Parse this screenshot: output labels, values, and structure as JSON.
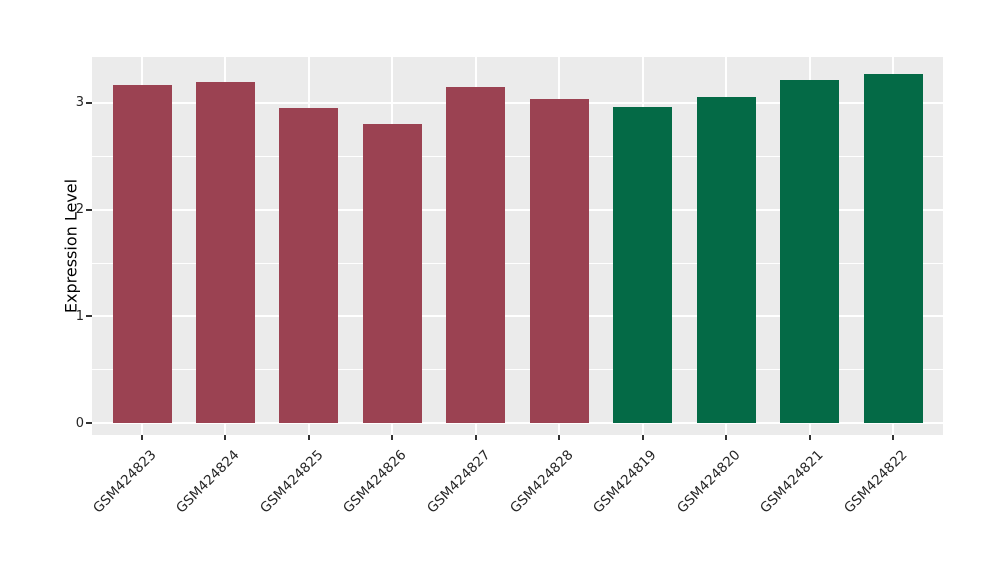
{
  "chart_data": {
    "type": "bar",
    "title": "",
    "xlabel": "",
    "ylabel": "Expression Level",
    "categories": [
      "GSM424823",
      "GSM424824",
      "GSM424825",
      "GSM424826",
      "GSM424827",
      "GSM424828",
      "GSM424819",
      "GSM424820",
      "GSM424821",
      "GSM424822"
    ],
    "values": [
      3.17,
      3.2,
      2.95,
      2.8,
      3.15,
      3.04,
      2.96,
      3.06,
      3.21,
      3.27
    ],
    "bar_groups": [
      "groupA",
      "groupA",
      "groupA",
      "groupA",
      "groupA",
      "groupA",
      "groupB",
      "groupB",
      "groupB",
      "groupB"
    ],
    "group_colors": {
      "groupA": "#9B4252",
      "groupB": "#046A46"
    },
    "yticks": [
      0,
      1,
      2,
      3
    ],
    "yticks_minor": [
      0.5,
      1.5,
      2.5
    ],
    "ylim": [
      -0.11,
      3.43
    ],
    "x_tick_angle": 45,
    "legend": "none",
    "grid": "on",
    "panel_bg": "#EBEBEB",
    "grid_color": "#FFFFFF",
    "tick_color": "#333333",
    "text_color": "#262626"
  }
}
